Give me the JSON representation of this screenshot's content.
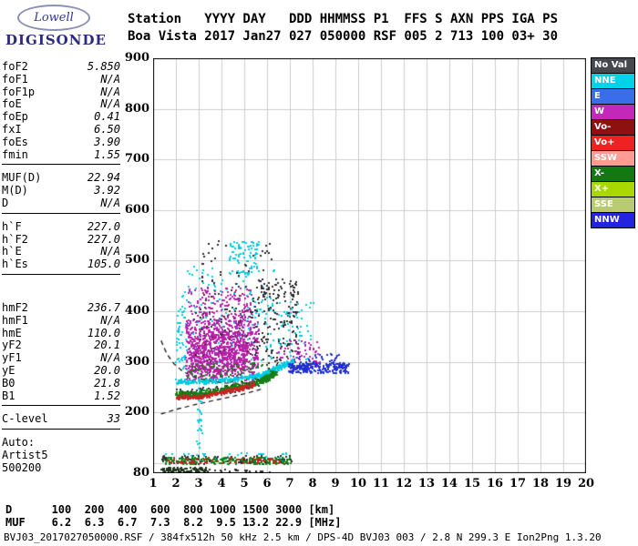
{
  "logo": {
    "brand": "Lowell",
    "product": "DIGISONDE"
  },
  "header": {
    "line1": "Station   YYYY DAY   DDD HHMMSS P1  FFS S AXN PPS IGA PS",
    "line2": "Boa Vista 2017 Jan27 027 050000 RSF 005 2 713 100 03+ 30"
  },
  "params": {
    "groups": [
      {
        "rows": [
          [
            "foF2",
            "5.850"
          ],
          [
            "foF1",
            "N/A"
          ],
          [
            "foF1p",
            "N/A"
          ],
          [
            "foE",
            "N/A"
          ],
          [
            "foEp",
            "0.41"
          ],
          [
            "fxI",
            "6.50"
          ],
          [
            "foEs",
            "3.90"
          ],
          [
            "fmin",
            "1.55"
          ]
        ]
      },
      {
        "rows": [
          [
            "MUF(D)",
            "22.94"
          ],
          [
            "M(D)",
            "3.92"
          ],
          [
            "D",
            "N/A"
          ]
        ]
      },
      {
        "rows": [
          [
            "h`F",
            "227.0"
          ],
          [
            "h`F2",
            "227.0"
          ],
          [
            "h`E",
            "N/A"
          ],
          [
            "h`Es",
            "105.0"
          ]
        ]
      },
      {
        "rows": [
          [
            "hmF2",
            "236.7"
          ],
          [
            "hmF1",
            "N/A"
          ],
          [
            "hmE",
            "110.0"
          ],
          [
            "yF2",
            "20.1"
          ],
          [
            "yF1",
            "N/A"
          ],
          [
            "yE",
            "20.0"
          ],
          [
            "B0",
            "21.8"
          ],
          [
            "B1",
            "1.52"
          ]
        ]
      },
      {
        "rows": [
          [
            "C-level",
            "33"
          ]
        ]
      }
    ],
    "footer": [
      "Auto:",
      "Artist5",
      "500200"
    ]
  },
  "legend": {
    "position": "right",
    "items": [
      {
        "label": "No Val",
        "color": "#47474f"
      },
      {
        "label": "NNE",
        "color": "#00d2e8"
      },
      {
        "label": "E",
        "color": "#3a6ee8"
      },
      {
        "label": "W",
        "color": "#c428b8"
      },
      {
        "label": "Vo-",
        "color": "#8f1010"
      },
      {
        "label": "Vo+",
        "color": "#ee2222"
      },
      {
        "label": "SSW",
        "color": "#ff9a94"
      },
      {
        "label": "X-",
        "color": "#127812"
      },
      {
        "label": "X+",
        "color": "#a8d800"
      },
      {
        "label": "SSE",
        "color": "#b9cb72"
      },
      {
        "label": "NNW",
        "color": "#2424e0"
      }
    ]
  },
  "chart_data": {
    "type": "scatter",
    "title": "",
    "xlabel": "[MHz]",
    "ylabel": "[km]",
    "xlim": [
      1,
      20
    ],
    "ylim": [
      80,
      900
    ],
    "x_ticks": [
      1,
      2,
      3,
      4,
      5,
      6,
      7,
      8,
      9,
      10,
      11,
      12,
      13,
      14,
      15,
      16,
      17,
      18,
      19,
      20
    ],
    "y_ticks": [
      900,
      800,
      700,
      600,
      500,
      400,
      300,
      200,
      80
    ],
    "grid": true,
    "grid_x": [
      2,
      3,
      4,
      5,
      6,
      7,
      8,
      9,
      10,
      11,
      12,
      13,
      14,
      15,
      16,
      17,
      18,
      19
    ],
    "grid_y": [
      100,
      200,
      300,
      400,
      500,
      600,
      700,
      800
    ],
    "dot_size": 2,
    "clusters": [
      {
        "name": "left-cyan-sparse",
        "type": "box",
        "color": "#00cce4",
        "x": [
          1.95,
          2.45
        ],
        "y": [
          285,
          420
        ],
        "n": 50
      },
      {
        "name": "spread-f-cyan-sparse",
        "type": "box",
        "color": "#00cce4",
        "x": [
          2.2,
          6.3
        ],
        "y": [
          295,
          490
        ],
        "n": 160
      },
      {
        "name": "upper-cyan-blobs",
        "type": "box",
        "color": "#00cce4",
        "x": [
          4.3,
          5.6
        ],
        "y": [
          468,
          540
        ],
        "n": 90
      },
      {
        "name": "upper-dark-sparse",
        "type": "box",
        "color": "#2e2e2e",
        "x": [
          3.0,
          6.2
        ],
        "y": [
          420,
          540
        ],
        "n": 55
      },
      {
        "name": "spread-f-dark-mixed",
        "type": "box",
        "color": "#2e2e2e",
        "x": [
          2.7,
          5.4
        ],
        "y": [
          275,
          410
        ],
        "n": 140
      },
      {
        "name": "spread-f-dark-right",
        "type": "box",
        "color": "#2e2e2e",
        "x": [
          5.4,
          7.35
        ],
        "y": [
          285,
          465
        ],
        "n": 200
      },
      {
        "name": "right-cyan-sparse",
        "type": "box",
        "color": "#00cce4",
        "x": [
          6.4,
          8.0
        ],
        "y": [
          300,
          420
        ],
        "n": 55
      },
      {
        "name": "right-magenta-sparse",
        "type": "box",
        "color": "#b820a8",
        "x": [
          6.4,
          8.3
        ],
        "y": [
          285,
          345
        ],
        "n": 70
      },
      {
        "name": "spread-f-magenta-core",
        "type": "box",
        "color": "#b820a8",
        "x": [
          2.4,
          5.6
        ],
        "y": [
          265,
          385
        ],
        "n": 700
      },
      {
        "name": "spread-f-magenta-inner",
        "type": "box",
        "color": "#b820a8",
        "x": [
          2.6,
          5.1
        ],
        "y": [
          280,
          360
        ],
        "n": 380
      },
      {
        "name": "spread-f-magenta-upper",
        "type": "box",
        "color": "#b820a8",
        "x": [
          2.5,
          5.3
        ],
        "y": [
          382,
          448
        ],
        "n": 150
      },
      {
        "name": "low-spread-green",
        "type": "box",
        "color": "#168016",
        "x": [
          2.4,
          5.8
        ],
        "y": [
          258,
          300
        ],
        "n": 80
      },
      {
        "name": "cyan-column",
        "type": "box",
        "color": "#00cce4",
        "x": [
          2.85,
          3.15
        ],
        "y": [
          125,
          255
        ],
        "n": 28
      },
      {
        "name": "f-trace-dark",
        "type": "trace",
        "color": "#2e2e2e",
        "points": [
          [
            2.0,
            240
          ],
          [
            3.0,
            240
          ],
          [
            4.0,
            246
          ],
          [
            5.0,
            254
          ],
          [
            5.9,
            268
          ],
          [
            6.4,
            283
          ]
        ],
        "jitter": 11,
        "n": 150
      },
      {
        "name": "f-trace-cyan-band",
        "type": "trace",
        "color": "#00cce4",
        "points": [
          [
            2.0,
            263
          ],
          [
            2.8,
            262
          ],
          [
            3.6,
            264
          ],
          [
            4.4,
            267
          ],
          [
            5.2,
            271
          ],
          [
            5.8,
            277
          ],
          [
            6.3,
            287
          ],
          [
            6.8,
            297
          ],
          [
            7.1,
            303
          ]
        ],
        "jitter": 6,
        "n": 380
      },
      {
        "name": "f-trace-green",
        "type": "trace",
        "color": "#168016",
        "points": [
          [
            1.95,
            238
          ],
          [
            2.6,
            236
          ],
          [
            3.3,
            240
          ],
          [
            4.0,
            245
          ],
          [
            4.7,
            251
          ],
          [
            5.4,
            259
          ],
          [
            5.9,
            268
          ],
          [
            6.35,
            281
          ]
        ],
        "jitter": 8,
        "n": 420
      },
      {
        "name": "f-trace-red",
        "type": "trace",
        "color": "#cc2222",
        "points": [
          [
            2.0,
            232
          ],
          [
            2.7,
            231
          ],
          [
            3.4,
            236
          ],
          [
            4.1,
            242
          ],
          [
            4.8,
            249
          ],
          [
            5.4,
            257
          ]
        ],
        "jitter": 6,
        "n": 200
      },
      {
        "name": "right-blue-trace",
        "type": "box",
        "color": "#2230d2",
        "x": [
          6.9,
          9.55
        ],
        "y": [
          279,
          299
        ],
        "n": 230
      },
      {
        "name": "right-blue-sparse",
        "type": "box",
        "color": "#2230d2",
        "x": [
          7.3,
          9.2
        ],
        "y": [
          298,
          318
        ],
        "n": 30
      },
      {
        "name": "es-cyan",
        "type": "box",
        "color": "#00cce4",
        "x": [
          1.5,
          6.9
        ],
        "y": [
          107,
          121
        ],
        "n": 40
      },
      {
        "name": "es-dark",
        "type": "box",
        "color": "#2e2e2e",
        "x": [
          1.35,
          7.05
        ],
        "y": [
          100,
          116
        ],
        "n": 140
      },
      {
        "name": "es-green",
        "type": "box",
        "color": "#168016",
        "x": [
          1.35,
          7.0
        ],
        "y": [
          99,
          113
        ],
        "n": 210
      },
      {
        "name": "es-red",
        "type": "box",
        "color": "#cc2222",
        "x": [
          1.6,
          6.6
        ],
        "y": [
          101,
          112
        ],
        "n": 60
      },
      {
        "name": "bottom-row-dark",
        "type": "box",
        "color": "#1e331e",
        "x": [
          1.32,
          3.3
        ],
        "y": [
          84,
          92
        ],
        "n": 100
      },
      {
        "name": "bottom-row-sparse",
        "type": "box",
        "color": "#2e2e2e",
        "x": [
          3.3,
          6.2
        ],
        "y": [
          84,
          90
        ],
        "n": 20
      }
    ],
    "model_traces": [
      {
        "name": "artist-f-trace",
        "points": [
          [
            1.35,
            342
          ],
          [
            1.6,
            316
          ],
          [
            1.9,
            297
          ],
          [
            2.3,
            281
          ],
          [
            2.8,
            270
          ],
          [
            3.5,
            262
          ],
          [
            4.2,
            258
          ],
          [
            5.0,
            258
          ],
          [
            5.6,
            263
          ],
          [
            6.0,
            272
          ],
          [
            6.35,
            288
          ],
          [
            6.6,
            308
          ]
        ]
      },
      {
        "name": "artist-e-valley-trace",
        "points": [
          [
            1.35,
            197
          ],
          [
            2.0,
            206
          ],
          [
            2.7,
            214
          ],
          [
            3.5,
            222
          ],
          [
            4.3,
            230
          ],
          [
            5.1,
            238
          ],
          [
            5.75,
            246
          ]
        ]
      }
    ]
  },
  "bottom": {
    "d_row": {
      "label": "D",
      "values": [
        "100",
        "200",
        "400",
        "600",
        "800",
        "1000",
        "1500",
        "3000"
      ],
      "unit": "[km]"
    },
    "muf_row": {
      "label": "MUF",
      "values": [
        "6.2",
        "6.3",
        "6.7",
        "7.3",
        "8.2",
        "9.5",
        "13.2",
        "22.9"
      ],
      "unit": "[MHz]"
    },
    "status": "BVJ03_2017027050000.RSF / 384fx512h 50 kHz 2.5 km / DPS-4D BVJ03 003 / 2.8 N 299.3 E Ion2Png 1.3.20"
  }
}
